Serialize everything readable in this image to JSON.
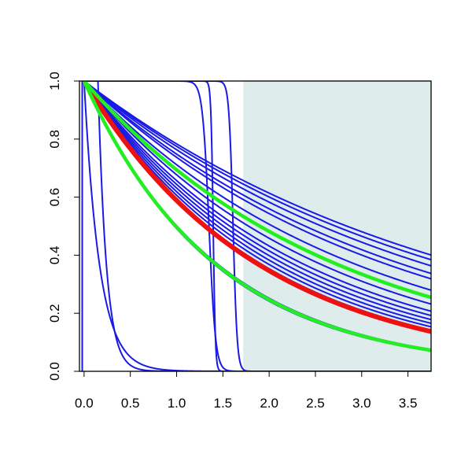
{
  "chart_data": {
    "type": "line",
    "title": "",
    "xlabel": "",
    "ylabel": "",
    "xlim": [
      -0.05,
      3.75
    ],
    "ylim": [
      0.0,
      1.0
    ],
    "x_ticks": [
      "0.0",
      "0.5",
      "1.0",
      "1.5",
      "2.0",
      "2.5",
      "3.0",
      "3.5"
    ],
    "y_ticks": [
      "0.0",
      "0.2",
      "0.4",
      "0.6",
      "0.8",
      "1.0"
    ],
    "grid": false,
    "legend": "none",
    "shaded_region": {
      "x_from": 1.72,
      "x_to": 3.75,
      "color": "#dfecec"
    },
    "series": [
      {
        "color": "#1a1ae6",
        "role": "blue",
        "kind": "exp",
        "rate": 0.244
      },
      {
        "color": "#1a1ae6",
        "role": "blue",
        "kind": "exp",
        "rate": 0.255
      },
      {
        "color": "#1a1ae6",
        "role": "blue",
        "kind": "exp",
        "rate": 0.27
      },
      {
        "color": "#1a1ae6",
        "role": "blue",
        "kind": "exp",
        "rate": 0.29
      },
      {
        "color": "#1a1ae6",
        "role": "blue",
        "kind": "exp",
        "rate": 0.305
      },
      {
        "color": "#1a1ae6",
        "role": "blue",
        "kind": "exp",
        "rate": 0.34
      },
      {
        "color": "#1a1ae6",
        "role": "blue",
        "kind": "exp",
        "rate": 0.39
      },
      {
        "color": "#1a1ae6",
        "role": "blue",
        "kind": "exp",
        "rate": 0.42
      },
      {
        "color": "#1a1ae6",
        "role": "blue",
        "kind": "exp",
        "rate": 0.44
      },
      {
        "color": "#1a1ae6",
        "role": "blue",
        "kind": "exp",
        "rate": 0.46
      },
      {
        "color": "#1a1ae6",
        "role": "blue",
        "kind": "exp",
        "rate": 0.48
      },
      {
        "color": "#1a1ae6",
        "role": "blue",
        "kind": "exp",
        "rate": 0.5
      },
      {
        "color": "#1a1ae6",
        "role": "blue",
        "kind": "exp",
        "rate": 0.52
      },
      {
        "color": "#1a1ae6",
        "role": "blue",
        "kind": "exp",
        "rate": 0.69
      },
      {
        "color": "#1a1ae6",
        "role": "blue",
        "kind": "exp",
        "rate": 0.71
      },
      {
        "color": "#1a1ae6",
        "role": "blue",
        "kind": "exp",
        "rate": 6.0
      },
      {
        "color": "#1a1ae6",
        "role": "blue",
        "kind": "shifted_exp",
        "x0": 0.15,
        "rate": 11.0
      },
      {
        "color": "#1a1ae6",
        "role": "blue",
        "kind": "cliff",
        "x0": 1.35,
        "width": 0.035
      },
      {
        "color": "#1a1ae6",
        "role": "blue",
        "kind": "cliff",
        "x0": 1.395,
        "width": 0.012
      },
      {
        "color": "#1a1ae6",
        "role": "blue",
        "kind": "cliff",
        "x0": 1.61,
        "width": 0.022
      },
      {
        "color": "#1a1ae6",
        "role": "blue",
        "kind": "vertical_drop",
        "x0": -0.02
      },
      {
        "color": "#ee1111",
        "role": "red",
        "kind": "exp",
        "rate": 0.53
      },
      {
        "color": "#22ee22",
        "role": "green",
        "kind": "exp",
        "rate": 0.365
      },
      {
        "color": "#22ee22",
        "role": "green",
        "kind": "exp",
        "rate": 0.7
      }
    ]
  }
}
